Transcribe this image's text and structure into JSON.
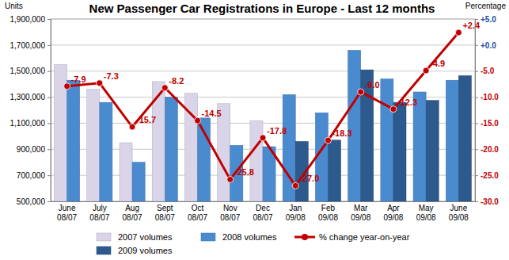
{
  "chart_data": {
    "type": "bar",
    "title": "New Passenger Car Registrations in Europe - Last 12 months",
    "y_label": "Units",
    "y2_label": "Percentage",
    "categories": [
      "June 08/07",
      "July 08/07",
      "Aug 08/07",
      "Sept 08/07",
      "Oct 08/07",
      "Nov 08/07",
      "Dec 08/07",
      "Jan 09/08",
      "Feb 09/08",
      "Mar 09/08",
      "Apr 09/08",
      "May 09/08",
      "June 09/08"
    ],
    "series": [
      {
        "name": "2007 volumes",
        "type": "bar",
        "color": "#d9d4e8",
        "values": [
          1550000,
          1360000,
          950000,
          1420000,
          1330000,
          1250000,
          1120000,
          null,
          null,
          null,
          null,
          null,
          null
        ]
      },
      {
        "name": "2008 volumes",
        "type": "bar",
        "color": "#4a8bd0",
        "values": [
          1430000,
          1260000,
          800000,
          1300000,
          1140000,
          930000,
          920000,
          1320000,
          1180000,
          1660000,
          1440000,
          1340000,
          1430000
        ]
      },
      {
        "name": "% change year-on-year",
        "type": "line",
        "axis": "y2",
        "color": "#c00000",
        "marker": "circle",
        "data_labels": true,
        "values": [
          -7.9,
          -7.3,
          -15.7,
          -8.2,
          -14.5,
          -25.8,
          -17.8,
          -27.0,
          -18.3,
          -9.0,
          -12.3,
          -4.9,
          2.4
        ],
        "value_labels": [
          "-7.9",
          "-7.3",
          "-15.7",
          "-8.2",
          "-14.5",
          "-25.8",
          "-17.8",
          "-27.0",
          "-18.3",
          "-9.0",
          "-12.3",
          "-4.9",
          "+2.4"
        ]
      },
      {
        "name": "2009 volumes",
        "type": "bar",
        "color": "#2c5a8c",
        "values": [
          null,
          null,
          null,
          null,
          null,
          null,
          null,
          960000,
          970000,
          1510000,
          1260000,
          1275000,
          1465000
        ]
      }
    ],
    "ylim": [
      500000,
      1900000
    ],
    "yticks": [
      {
        "value": 500000,
        "label": "500,000"
      },
      {
        "value": 700000,
        "label": "700,000"
      },
      {
        "value": 900000,
        "label": "900,000"
      },
      {
        "value": 1100000,
        "label": "1,100,000"
      },
      {
        "value": 1300000,
        "label": "1,300,000"
      },
      {
        "value": 1500000,
        "label": "1,500,000"
      },
      {
        "value": 1700000,
        "label": "1,700,000"
      },
      {
        "value": 1900000,
        "label": "1,900,000"
      }
    ],
    "y2lim": [
      -30,
      5
    ],
    "y2ticks": [
      {
        "value": -30,
        "label": "-30.0"
      },
      {
        "value": -25,
        "label": "-25.0"
      },
      {
        "value": -20,
        "label": "-20.0"
      },
      {
        "value": -15,
        "label": "-15.0"
      },
      {
        "value": -10,
        "label": "-10.0"
      },
      {
        "value": -5,
        "label": "-5.0"
      },
      {
        "value": 0,
        "label": "+0.0"
      },
      {
        "value": 5,
        "label": "+5.0"
      }
    ],
    "grid": true,
    "legend": "bottom"
  }
}
